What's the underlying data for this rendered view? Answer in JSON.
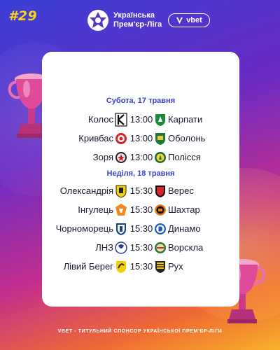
{
  "round_tag": "#29",
  "league": {
    "line1": "Українська",
    "line2": "Прем'єр-Ліга"
  },
  "sponsor": {
    "name": "vbet"
  },
  "days": [
    {
      "date": "Субота, 17 травня",
      "matches": [
        {
          "home": "Колос",
          "time": "13:00",
          "away": "Карпати",
          "home_crest": "kolos-crest",
          "away_crest": "karpaty-crest"
        },
        {
          "home": "Кривбас",
          "time": "13:00",
          "away": "Оболонь",
          "home_crest": "kryvbas-crest",
          "away_crest": "obolon-crest"
        },
        {
          "home": "Зоря",
          "time": "13:00",
          "away": "Полісся",
          "home_crest": "zorya-crest",
          "away_crest": "polissya-crest"
        }
      ]
    },
    {
      "date": "Неділя, 18 травня",
      "matches": [
        {
          "home": "Олександрія",
          "time": "15:30",
          "away": "Верес",
          "home_crest": "oleksandriya-crest",
          "away_crest": "veres-crest"
        },
        {
          "home": "Інгулець",
          "time": "15:30",
          "away": "Шахтар",
          "home_crest": "inhulets-crest",
          "away_crest": "shakhtar-crest"
        },
        {
          "home": "Чорноморець",
          "time": "15:30",
          "away": "Динамо",
          "home_crest": "chornomorets-crest",
          "away_crest": "dynamo-crest"
        },
        {
          "home": "ЛНЗ",
          "time": "15:30",
          "away": "Ворскла",
          "home_crest": "lnz-crest",
          "away_crest": "vorskla-crest"
        },
        {
          "home": "Лівий Берег",
          "time": "15:30",
          "away": "Рух",
          "home_crest": "livyi-bereh-crest",
          "away_crest": "rukh-crest"
        }
      ]
    }
  ],
  "footer": "VBET - ТИТУЛЬНИЙ СПОНСОР УКРАЇНСЬКОЇ ПРЕМ'ЄР-ЛІГИ",
  "colors": {
    "accent_yellow": "#f7d21b",
    "date_blue": "#3b40c9",
    "text_dark": "#1a1a2e"
  }
}
